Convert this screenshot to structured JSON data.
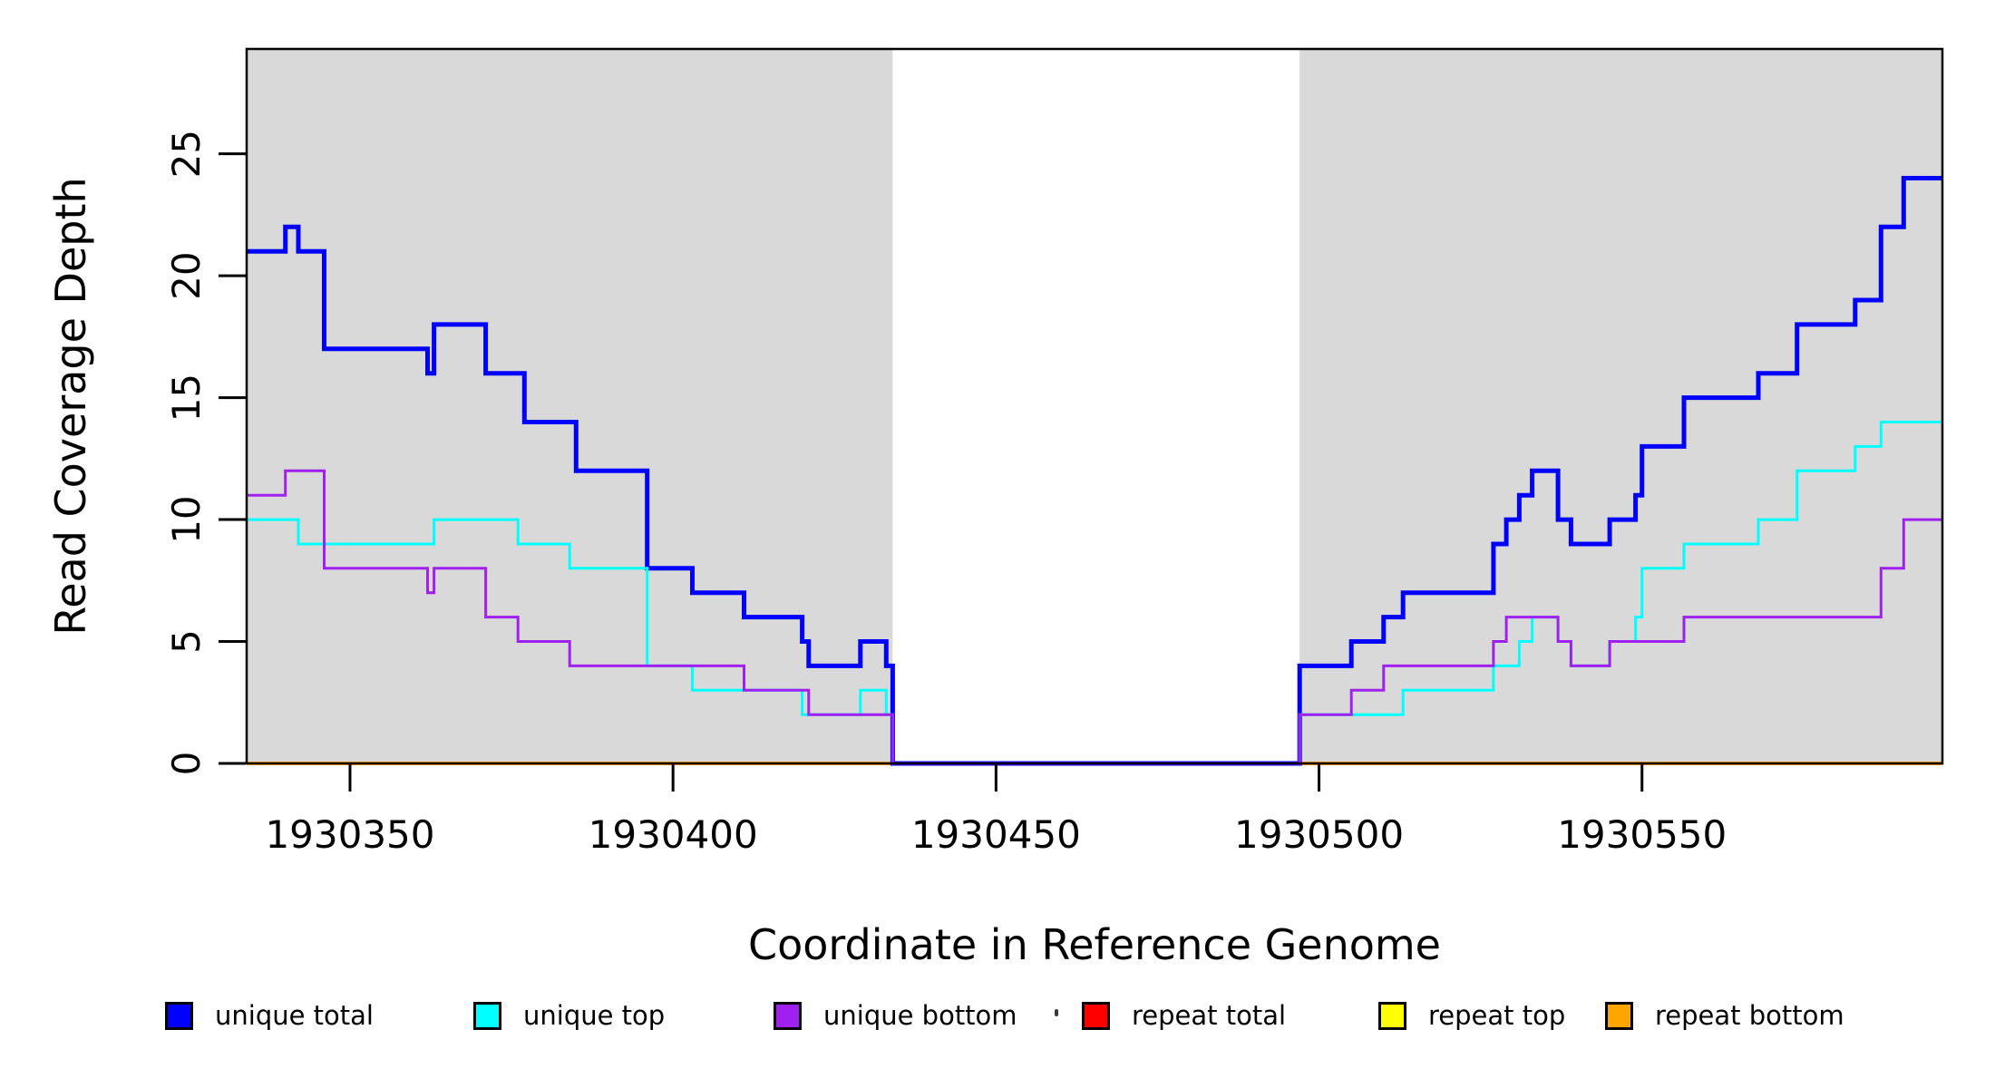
{
  "figure": {
    "background_color": "#FFFFFF",
    "text_color": "#000000"
  },
  "chart_data": {
    "type": "line",
    "subtype": "step",
    "title": "",
    "xlabel": "Coordinate in Reference Genome",
    "ylabel": "Read Coverage Depth",
    "x_domain": [
      1930334,
      1930596.5
    ],
    "y_domain": [
      0,
      29.3
    ],
    "x_ticks": [
      1930350,
      1930400,
      1930450,
      1930500,
      1930550
    ],
    "y_ticks": [
      0,
      5,
      10,
      15,
      20,
      25
    ],
    "grid": "off",
    "legend_position": "bottom",
    "plot_background": "#FFFFFF",
    "shaded_band_color": "#D9D9D9",
    "shaded_x_regions": [
      [
        1930334,
        1930434
      ],
      [
        1930497,
        1930596.5
      ]
    ],
    "gap_region": [
      1930434,
      1930497
    ],
    "series": [
      {
        "name": "unique total",
        "color": "#0000FF",
        "line_width": 5,
        "z": 4,
        "segments": [
          [
            1930334,
            1930340,
            21
          ],
          [
            1930340,
            1930342,
            22
          ],
          [
            1930342,
            1930346,
            21
          ],
          [
            1930346,
            1930362,
            17
          ],
          [
            1930362,
            1930363,
            16
          ],
          [
            1930363,
            1930371,
            18
          ],
          [
            1930371,
            1930377,
            16
          ],
          [
            1930377,
            1930385,
            14
          ],
          [
            1930385,
            1930396,
            12
          ],
          [
            1930396,
            1930403,
            8
          ],
          [
            1930403,
            1930411,
            7
          ],
          [
            1930411,
            1930420,
            6
          ],
          [
            1930420,
            1930421,
            5
          ],
          [
            1930421,
            1930429,
            4
          ],
          [
            1930429,
            1930433,
            5
          ],
          [
            1930433,
            1930434,
            4
          ],
          [
            1930434,
            1930497,
            0
          ],
          [
            1930497,
            1930505,
            4
          ],
          [
            1930505,
            1930510,
            5
          ],
          [
            1930510,
            1930513,
            6
          ],
          [
            1930513,
            1930527,
            7
          ],
          [
            1930527,
            1930529,
            9
          ],
          [
            1930529,
            1930531,
            10
          ],
          [
            1930531,
            1930533,
            11
          ],
          [
            1930533,
            1930537,
            12
          ],
          [
            1930537,
            1930539,
            10
          ],
          [
            1930539,
            1930545,
            9
          ],
          [
            1930545,
            1930549,
            10
          ],
          [
            1930549,
            1930550,
            11
          ],
          [
            1930550,
            1930556.5,
            13
          ],
          [
            1930556.5,
            1930568,
            15
          ],
          [
            1930568,
            1930574,
            16
          ],
          [
            1930574,
            1930583,
            18
          ],
          [
            1930583,
            1930587,
            19
          ],
          [
            1930587,
            1930590.5,
            22
          ],
          [
            1930590.5,
            1930596.5,
            24
          ]
        ]
      },
      {
        "name": "unique top",
        "color": "#00FFFF",
        "line_width": 3,
        "z": 5,
        "segments": [
          [
            1930334,
            1930342,
            10
          ],
          [
            1930342,
            1930363,
            9
          ],
          [
            1930363,
            1930376,
            10
          ],
          [
            1930376,
            1930384,
            9
          ],
          [
            1930384,
            1930396,
            8
          ],
          [
            1930396,
            1930403,
            4
          ],
          [
            1930403,
            1930420,
            3
          ],
          [
            1930420,
            1930429,
            2
          ],
          [
            1930429,
            1930433,
            3
          ],
          [
            1930433,
            1930434,
            2
          ],
          [
            1930434,
            1930497,
            0
          ],
          [
            1930497,
            1930513,
            2
          ],
          [
            1930513,
            1930527,
            3
          ],
          [
            1930527,
            1930531,
            4
          ],
          [
            1930531,
            1930533,
            5
          ],
          [
            1930533,
            1930537,
            6
          ],
          [
            1930537,
            1930539,
            5
          ],
          [
            1930539,
            1930545,
            4
          ],
          [
            1930545,
            1930549,
            5
          ],
          [
            1930549,
            1930550,
            6
          ],
          [
            1930550,
            1930556.5,
            8
          ],
          [
            1930556.5,
            1930568,
            9
          ],
          [
            1930568,
            1930574,
            10
          ],
          [
            1930574,
            1930583,
            12
          ],
          [
            1930583,
            1930587,
            13
          ],
          [
            1930587,
            1930596.5,
            14
          ]
        ]
      },
      {
        "name": "unique bottom",
        "color": "#A020F0",
        "line_width": 3,
        "z": 6,
        "segments": [
          [
            1930334,
            1930340,
            11
          ],
          [
            1930340,
            1930346,
            12
          ],
          [
            1930346,
            1930362,
            8
          ],
          [
            1930362,
            1930363,
            7
          ],
          [
            1930363,
            1930371,
            8
          ],
          [
            1930371,
            1930376,
            6
          ],
          [
            1930376,
            1930384,
            5
          ],
          [
            1930384,
            1930411,
            4
          ],
          [
            1930411,
            1930421,
            3
          ],
          [
            1930421,
            1930434,
            2
          ],
          [
            1930434,
            1930497,
            0
          ],
          [
            1930497,
            1930505,
            2
          ],
          [
            1930505,
            1930510,
            3
          ],
          [
            1930510,
            1930527,
            4
          ],
          [
            1930527,
            1930529,
            5
          ],
          [
            1930529,
            1930537,
            6
          ],
          [
            1930537,
            1930539,
            5
          ],
          [
            1930539,
            1930545,
            4
          ],
          [
            1930545,
            1930556.5,
            5
          ],
          [
            1930556.5,
            1930587,
            6
          ],
          [
            1930587,
            1930590.5,
            8
          ],
          [
            1930590.5,
            1930596.5,
            10
          ]
        ]
      },
      {
        "name": "repeat total",
        "color": "#FF0000",
        "line_width": 3,
        "z": 1,
        "segments": [
          [
            1930334,
            1930596.5,
            0
          ]
        ]
      },
      {
        "name": "repeat top",
        "color": "#FFFF00",
        "line_width": 3,
        "z": 2,
        "segments": [
          [
            1930334,
            1930596.5,
            0
          ]
        ]
      },
      {
        "name": "repeat bottom",
        "color": "#FFA500",
        "line_width": 4,
        "z": 3,
        "segments": [
          [
            1930334,
            1930596.5,
            0
          ]
        ]
      }
    ]
  },
  "legend": {
    "items": [
      {
        "label": "unique total",
        "color": "#0000FF"
      },
      {
        "label": "unique top",
        "color": "#00FFFF"
      },
      {
        "label": "unique bottom",
        "color": "#A020F0"
      },
      {
        "label": "repeat total",
        "color": "#FF0000"
      },
      {
        "label": "repeat top",
        "color": "#FFFF00"
      },
      {
        "label": "repeat bottom",
        "color": "#FFA500"
      }
    ]
  }
}
